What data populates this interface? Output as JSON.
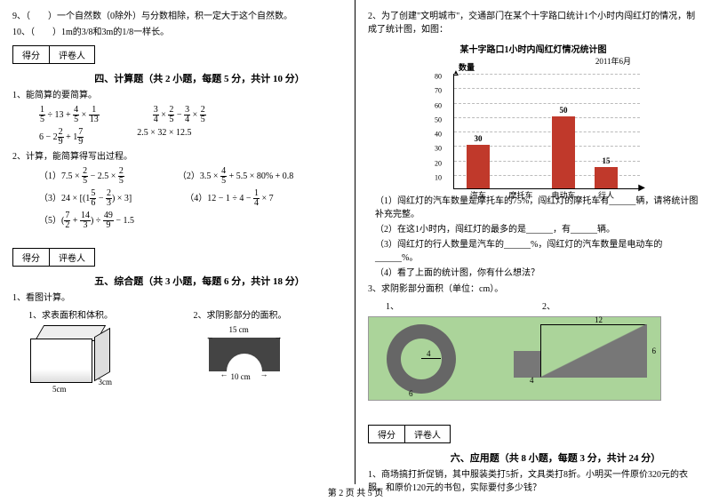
{
  "leftCol": {
    "q9": "9、（　　）一个自然数（0除外）与分数相除，积一定大于这个自然数。",
    "q10": "10、（　　）1m的3/8和3m的1/8一样长。",
    "scoreLabels": {
      "score": "得分",
      "grader": "评卷人"
    },
    "section4": "四、计算题（共 2 小题，每题 5 分，共计 10 分）",
    "calc1_title": "1、能简算的要简算。",
    "calc2_title": "2、计算，能简算得写出过程。",
    "section5": "五、综合题（共 3 小题，每题 6 分，共计 18 分）",
    "comp1": "1、看图计算。",
    "comp1_1": "1、求表面积和体积。",
    "comp1_2": "2、求阴影部分的面积。",
    "box_dims": {
      "w": "5cm",
      "h": "3cm"
    },
    "arch": {
      "top": "15 cm",
      "bottom": "10 cm"
    }
  },
  "rightCol": {
    "q2_intro": "2、为了创建\"文明城市\"，交通部门在某个十字路口统计1个小时内闯红灯的情况，制成了统计图，如图：",
    "chart": {
      "title": "某十字路口1小时内闯红灯情况统计图",
      "date": "2011年6月",
      "ylabel": "数量",
      "ymax": 80,
      "ytick_step": 10,
      "categories": [
        "汽车",
        "摩托车",
        "电动车",
        "行人"
      ],
      "values": [
        30,
        null,
        50,
        15
      ],
      "bar_color": "#c0392b",
      "grid_color": "#bbbbbb"
    },
    "sub1": "（1）闯红灯的汽车数量是摩托车的75%，闯红灯的摩托车有______辆，请将统计图补充完整。",
    "sub2": "（2）在这1小时内，闯红灯的最多的是______，有______辆。",
    "sub3": "（3）闯红灯的行人数量是汽车的______%，闯红灯的汽车数量是电动车的______%。",
    "sub4": "（4）看了上面的统计图，你有什么想法？",
    "q3": "3、求阴影部分面积（单位：cm）。",
    "fig_labels": {
      "l1": "1、",
      "l2": "2、",
      "circ_r": "4",
      "circ_d": "6",
      "tri_w": "12",
      "tri_h": "6",
      "tri_s": "4"
    },
    "section6": "六、应用题（共 8 小题，每题 3 分，共计 24 分）",
    "app1": "1、商场搞打折促销，其中服装类打5折，文具类打8折。小明买一件原价320元的衣服，和原价120元的书包，实际要付多少钱？"
  },
  "footer": "第 2 页 共 5 页"
}
